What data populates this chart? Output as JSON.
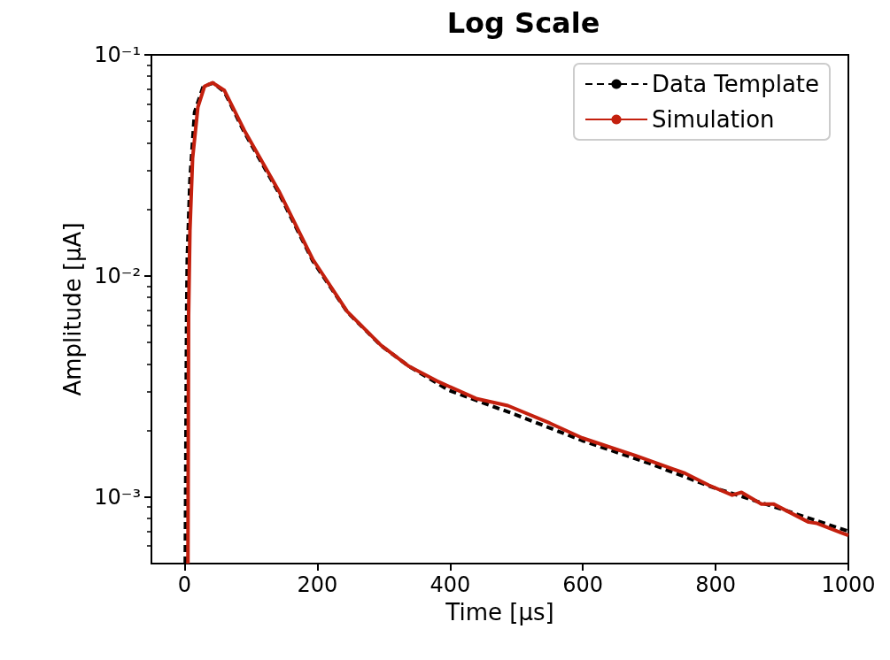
{
  "chart_data": {
    "type": "line",
    "title": "Log Scale",
    "xlabel": "Time [µs]",
    "ylabel": "Amplitude [µA]",
    "log": "y",
    "grid": false,
    "legend": "top right",
    "marker": "none",
    "xlim": [
      -50,
      1000
    ],
    "xticks": [
      0,
      200,
      400,
      600,
      800,
      1000
    ],
    "ylim": [
      0.0005,
      0.1
    ],
    "yticks": [
      {
        "value": 0.1,
        "label": "10⁻¹"
      },
      {
        "value": 0.01,
        "label": "10⁻²"
      },
      {
        "value": 0.001,
        "label": "10⁻³"
      }
    ],
    "series": [
      {
        "name": "Data Template",
        "color": "#000000",
        "line_style": "dashed",
        "x": [
          1,
          3,
          4,
          8,
          15,
          28,
          43,
          60,
          90,
          142,
          193,
          245,
          296,
          338,
          399,
          500,
          599,
          700,
          794,
          900,
          1000
        ],
        "values": [
          0.0005,
          0.0066,
          0.012,
          0.027,
          0.055,
          0.072,
          0.0746,
          0.068,
          0.0446,
          0.0237,
          0.0117,
          0.00687,
          0.00484,
          0.0039,
          0.00303,
          0.00235,
          0.0018,
          0.00142,
          0.00111,
          0.00088,
          0.0007
        ]
      },
      {
        "name": "Simulation",
        "color": "#c4200e",
        "line_style": "solid",
        "x": [
          5,
          6,
          8,
          12,
          20,
          30,
          42,
          60,
          90,
          142,
          193,
          245,
          296,
          338,
          380,
          439,
          487,
          550,
          599,
          679,
          754,
          790,
          825,
          839,
          869,
          887,
          940,
          953,
          989,
          1000
        ],
        "values": [
          0.0005,
          0.0066,
          0.016,
          0.034,
          0.058,
          0.072,
          0.0748,
          0.069,
          0.0455,
          0.0242,
          0.0119,
          0.0069,
          0.00485,
          0.0039,
          0.00335,
          0.00279,
          0.00259,
          0.00216,
          0.00185,
          0.00154,
          0.00128,
          0.00113,
          0.00102,
          0.00105,
          0.00093,
          0.00093,
          0.00077,
          0.00076,
          0.00069,
          0.00067
        ]
      }
    ]
  }
}
